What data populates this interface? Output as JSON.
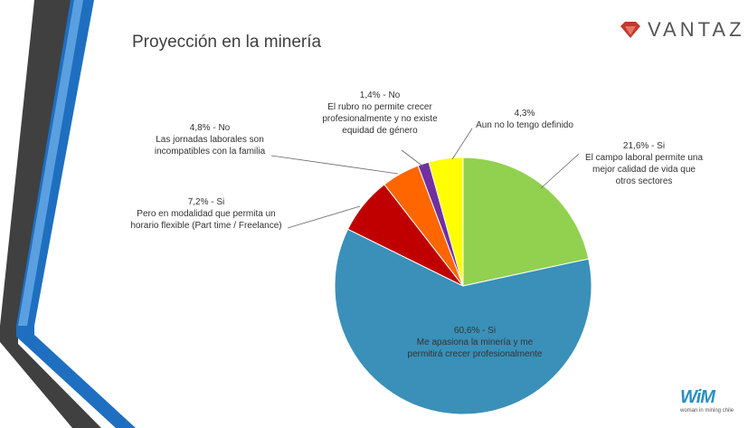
{
  "header": {
    "title": "Proyección en la minería",
    "brand": "VANTAZ",
    "footer_logo": "WiM",
    "footer_tagline": "woman in mining chile"
  },
  "colors": {
    "si_apasiona": "#3a90b8",
    "si_calidad": "#92d050",
    "aun_no": "#ffff00",
    "no_equidad": "#7030a0",
    "no_jornadas": "#ff6600",
    "si_freelance": "#c00000",
    "stripe_dark": "#404040",
    "stripe_blue": "#1f6fc0",
    "brand_red": "#c0392b"
  },
  "chart_data": {
    "type": "pie",
    "title": "Proyección en la minería",
    "start_angle_deg": 0,
    "direction": "clockwise",
    "slices": [
      {
        "key": "si_calidad",
        "value": 21.6,
        "pct_label": "21,6% - Si",
        "text": [
          "El campo laboral permite una",
          "mejor calidad de vida que",
          "otros sectores"
        ]
      },
      {
        "key": "si_apasiona",
        "value": 60.6,
        "pct_label": "60,6% - Si",
        "text": [
          "Me apasiona la minería y me",
          "permitirá crecer profesionalmente"
        ]
      },
      {
        "key": "si_freelance",
        "value": 7.2,
        "pct_label": "7,2% - Si",
        "text": [
          "Pero en modalidad que permita un",
          "horario flexible (Part time / Freelance)"
        ]
      },
      {
        "key": "no_jornadas",
        "value": 4.8,
        "pct_label": "4,8% - No",
        "text": [
          "Las jornadas laborales son",
          "incompatibles con la familia"
        ]
      },
      {
        "key": "no_equidad",
        "value": 1.4,
        "pct_label": "1,4% - No",
        "text": [
          "El rubro no permite crecer",
          "profesionalmente y no existe",
          "equidad de género"
        ]
      },
      {
        "key": "aun_no",
        "value": 4.3,
        "pct_label": "4,3%",
        "text": [
          "Aun no lo tengo definido"
        ]
      }
    ]
  }
}
